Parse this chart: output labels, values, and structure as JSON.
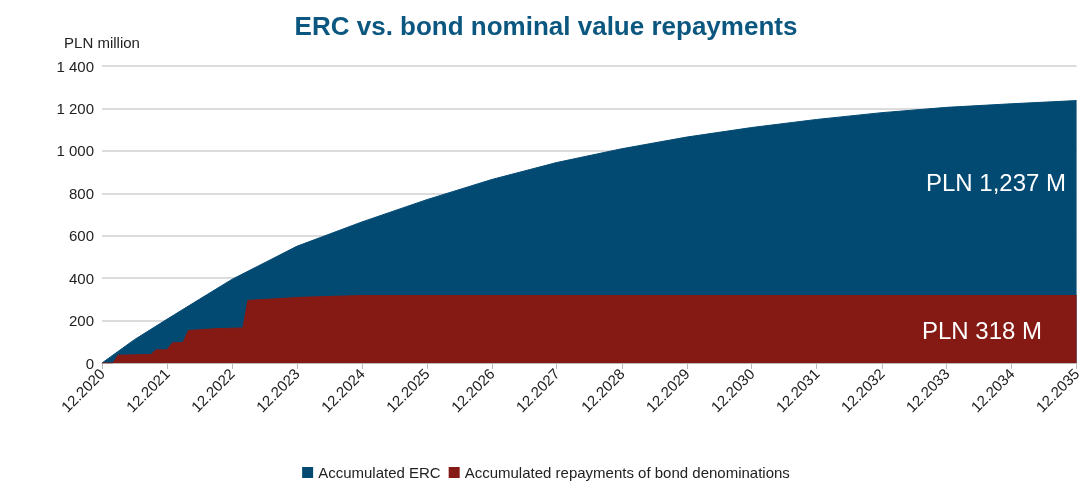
{
  "chart_data": {
    "type": "area",
    "title": "ERC vs. bond nominal value repayments",
    "ylabel": "PLN million",
    "xlim": [
      "2020-12",
      "2035-12"
    ],
    "xticks": [
      {
        "value": "2020-12",
        "label": "12.2020"
      },
      {
        "value": "2021-12",
        "label": "12.2021"
      },
      {
        "value": "2022-12",
        "label": "12.2022"
      },
      {
        "value": "2023-12",
        "label": "12.2023"
      },
      {
        "value": "2024-12",
        "label": "12.2024"
      },
      {
        "value": "2025-12",
        "label": "12.2025"
      },
      {
        "value": "2026-12",
        "label": "12.2026"
      },
      {
        "value": "2027-12",
        "label": "12.2027"
      },
      {
        "value": "2028-12",
        "label": "12.2028"
      },
      {
        "value": "2029-12",
        "label": "12.2029"
      },
      {
        "value": "2030-12",
        "label": "12.2030"
      },
      {
        "value": "2031-12",
        "label": "12.2031"
      },
      {
        "value": "2032-12",
        "label": "12.2032"
      },
      {
        "value": "2033-12",
        "label": "12.2033"
      },
      {
        "value": "2034-12",
        "label": "12.2034"
      },
      {
        "value": "2035-12",
        "label": "12.2035"
      }
    ],
    "ylim": [
      0,
      1400
    ],
    "yticks": [
      0,
      200,
      400,
      600,
      800,
      {
        "value": 1000,
        "label": "1 000"
      },
      {
        "value": 1200,
        "label": "1 200"
      },
      {
        "value": 1400,
        "label": "1 400"
      }
    ],
    "grid": "y",
    "legend": "bottom",
    "series": [
      {
        "name": "Accumulated ERC",
        "color": "#034a73",
        "x": [
          "2020-12",
          "2021-06",
          "2021-12",
          "2022-06",
          "2022-12",
          "2023-12",
          "2024-12",
          "2025-12",
          "2026-12",
          "2027-12",
          "2028-12",
          "2029-12",
          "2030-12",
          "2031-12",
          "2032-12",
          "2033-12",
          "2034-12",
          "2035-12"
        ],
        "values": [
          0,
          110,
          206,
          300,
          394,
          550,
          665,
          770,
          865,
          945,
          1010,
          1065,
          1110,
          1148,
          1180,
          1205,
          1222,
          1237
        ]
      },
      {
        "name": "Accumulated repayments of bond denominations",
        "color": "#851914",
        "x": [
          "2020-12",
          "2021-02",
          "2021-03",
          "2021-09",
          "2021-10",
          "2021-12",
          "2022-01",
          "2022-03",
          "2022-04",
          "2022-09",
          "2023-02",
          "2023-03",
          "2024-01",
          "2024-12",
          "2035-12"
        ],
        "values": [
          0,
          0,
          37,
          40,
          62,
          62,
          95,
          97,
          153,
          162,
          165,
          295,
          310,
          318,
          318
        ]
      }
    ],
    "annotations": [
      "PLN 1,237 M",
      "PLN 318 M"
    ]
  }
}
